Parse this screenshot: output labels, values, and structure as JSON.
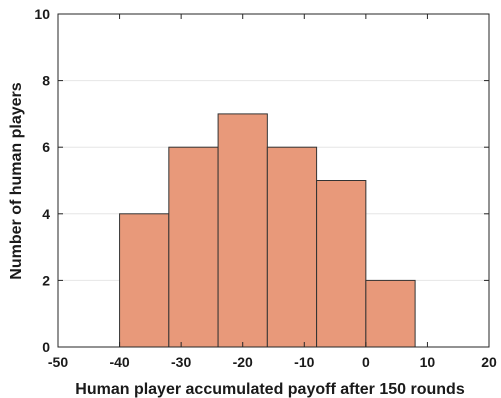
{
  "chart_data": {
    "type": "bar",
    "subtype": "histogram",
    "title": "",
    "xlabel": "Human player accumulated payoff after 150 rounds",
    "ylabel": "Number of human players",
    "xlim": [
      -50,
      20
    ],
    "ylim": [
      0,
      10
    ],
    "xticks": [
      "-50",
      "-40",
      "-30",
      "-20",
      "-10",
      "0",
      "10",
      "20"
    ],
    "yticks": [
      "0",
      "2",
      "4",
      "6",
      "8",
      "10"
    ],
    "bin_edges": [
      -40,
      -32,
      -24,
      -16,
      -8,
      0,
      8
    ],
    "values": [
      4,
      6,
      7,
      6,
      5,
      2
    ],
    "grid": true,
    "legend": "none",
    "colors": {
      "bar_fill": "#e8997a",
      "bar_edge": "#333333",
      "axis": "#262626",
      "grid": "#e6e6e6"
    }
  }
}
